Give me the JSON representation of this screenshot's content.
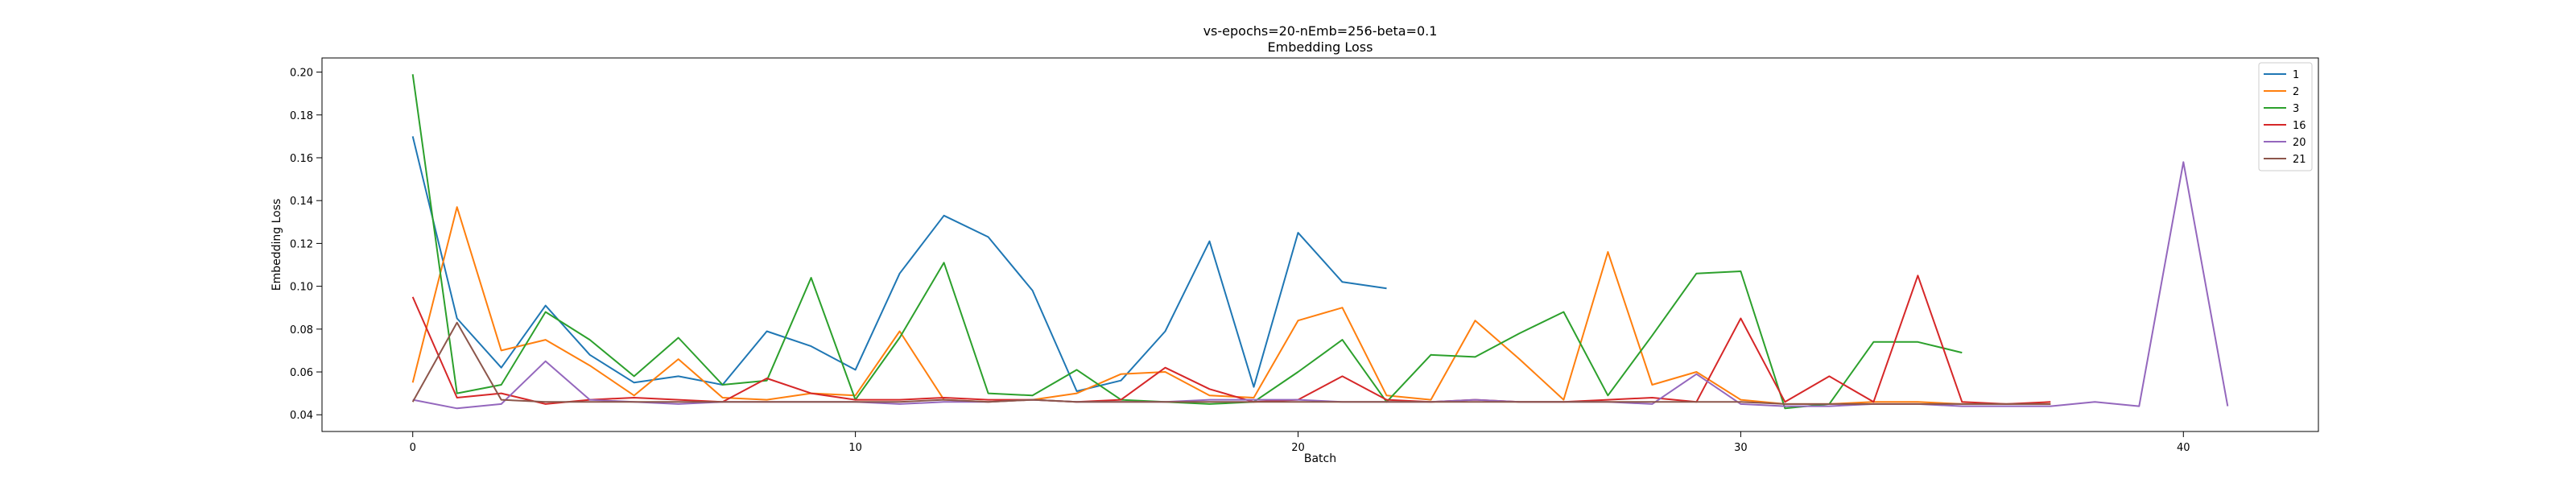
{
  "chart_data": {
    "type": "line",
    "title": "vs-epochs=20-nEmb=256-beta=0.1",
    "subtitle": "Embedding Loss",
    "xlabel": "Batch",
    "ylabel": "Embedding Loss",
    "xlim": [
      -2.05,
      43.05
    ],
    "ylim": [
      0.0322,
      0.2066
    ],
    "xticks": [
      0,
      10,
      20,
      30,
      40
    ],
    "yticks": [
      0.04,
      0.06,
      0.08,
      0.1,
      0.12,
      0.14,
      0.16,
      0.18,
      0.2
    ],
    "xtick_labels": [
      "0",
      "10",
      "20",
      "30",
      "40"
    ],
    "ytick_labels": [
      "0.04",
      "0.06",
      "0.08",
      "0.10",
      "0.12",
      "0.14",
      "0.16",
      "0.18",
      "0.20"
    ],
    "grid": false,
    "legend_position": "top-right",
    "series": [
      {
        "name": "1",
        "color": "#1f77b4",
        "x": [
          0,
          1,
          2,
          3,
          4,
          5,
          6,
          7,
          8,
          9,
          10,
          11,
          12,
          13,
          14,
          15,
          16,
          17,
          18,
          19,
          20,
          21,
          22
        ],
        "y": [
          0.17,
          0.085,
          0.062,
          0.091,
          0.068,
          0.055,
          0.058,
          0.054,
          0.079,
          0.072,
          0.061,
          0.106,
          0.133,
          0.123,
          0.098,
          0.051,
          0.056,
          0.079,
          0.121,
          0.053,
          0.125,
          0.102,
          0.099
        ]
      },
      {
        "name": "2",
        "color": "#ff7f0e",
        "x": [
          0,
          1,
          2,
          3,
          4,
          5,
          6,
          7,
          8,
          9,
          10,
          11,
          12,
          13,
          14,
          15,
          16,
          17,
          18,
          19,
          20,
          21,
          22,
          23,
          24,
          25,
          26,
          27,
          28,
          29,
          30,
          31,
          32,
          33,
          34,
          35,
          36,
          37
        ],
        "y": [
          0.055,
          0.137,
          0.07,
          0.075,
          0.063,
          0.049,
          0.066,
          0.048,
          0.047,
          0.05,
          0.049,
          0.079,
          0.047,
          0.046,
          0.047,
          0.05,
          0.059,
          0.06,
          0.049,
          0.048,
          0.084,
          0.09,
          0.049,
          0.047,
          0.084,
          0.066,
          0.047,
          0.116,
          0.054,
          0.06,
          0.047,
          0.045,
          0.045,
          0.046,
          0.046,
          0.045,
          0.045,
          0.045
        ]
      },
      {
        "name": "3",
        "color": "#2ca02c",
        "x": [
          0,
          1,
          2,
          3,
          4,
          5,
          6,
          7,
          8,
          9,
          10,
          11,
          12,
          13,
          14,
          15,
          16,
          17,
          18,
          19,
          20,
          21,
          22,
          23,
          24,
          25,
          26,
          27,
          28,
          29,
          30,
          31,
          32,
          33,
          34,
          35
        ],
        "y": [
          0.199,
          0.05,
          0.054,
          0.088,
          0.075,
          0.058,
          0.076,
          0.054,
          0.056,
          0.104,
          0.047,
          0.076,
          0.111,
          0.05,
          0.049,
          0.061,
          0.047,
          0.046,
          0.045,
          0.046,
          0.06,
          0.075,
          0.046,
          0.068,
          0.067,
          0.078,
          0.088,
          0.049,
          0.077,
          0.106,
          0.107,
          0.043,
          0.045,
          0.074,
          0.074,
          0.069
        ]
      },
      {
        "name": "16",
        "color": "#d62728",
        "x": [
          0,
          1,
          2,
          3,
          4,
          5,
          6,
          7,
          8,
          9,
          10,
          11,
          12,
          13,
          14,
          15,
          16,
          17,
          18,
          19,
          20,
          21,
          22,
          23,
          24,
          25,
          26,
          27,
          28,
          29,
          30,
          31,
          32,
          33,
          34,
          35,
          36,
          37
        ],
        "y": [
          0.095,
          0.048,
          0.05,
          0.045,
          0.047,
          0.048,
          0.047,
          0.046,
          0.057,
          0.05,
          0.047,
          0.047,
          0.048,
          0.047,
          0.047,
          0.046,
          0.047,
          0.062,
          0.052,
          0.046,
          0.047,
          0.058,
          0.047,
          0.046,
          0.047,
          0.046,
          0.046,
          0.047,
          0.048,
          0.046,
          0.085,
          0.046,
          0.058,
          0.046,
          0.105,
          0.046,
          0.045,
          0.046
        ]
      },
      {
        "name": "20",
        "color": "#9467bd",
        "x": [
          0,
          1,
          2,
          3,
          4,
          5,
          6,
          7,
          8,
          9,
          10,
          11,
          12,
          13,
          14,
          15,
          16,
          17,
          18,
          19,
          20,
          21,
          22,
          23,
          24,
          25,
          26,
          27,
          28,
          29,
          30,
          31,
          32,
          33,
          34,
          35,
          36,
          37,
          38,
          39,
          40,
          41
        ],
        "y": [
          0.047,
          0.043,
          0.045,
          0.065,
          0.047,
          0.046,
          0.045,
          0.046,
          0.046,
          0.046,
          0.046,
          0.045,
          0.046,
          0.046,
          0.047,
          0.046,
          0.046,
          0.046,
          0.047,
          0.047,
          0.047,
          0.046,
          0.046,
          0.046,
          0.047,
          0.046,
          0.046,
          0.046,
          0.045,
          0.059,
          0.045,
          0.044,
          0.044,
          0.045,
          0.045,
          0.044,
          0.044,
          0.044,
          0.046,
          0.044,
          0.158,
          0.044
        ]
      },
      {
        "name": "21",
        "color": "#8c564b",
        "x": [
          0,
          1,
          2,
          3,
          4,
          5,
          6,
          7,
          8,
          9,
          10,
          11,
          12,
          13,
          14,
          15,
          16,
          17,
          18,
          19,
          20,
          21,
          22,
          23,
          24,
          25,
          26,
          27,
          28,
          29,
          30,
          31,
          32,
          33,
          34,
          35,
          36,
          37
        ],
        "y": [
          0.046,
          0.083,
          0.047,
          0.046,
          0.046,
          0.046,
          0.046,
          0.046,
          0.046,
          0.046,
          0.046,
          0.046,
          0.047,
          0.046,
          0.047,
          0.046,
          0.046,
          0.046,
          0.046,
          0.046,
          0.046,
          0.046,
          0.046,
          0.046,
          0.046,
          0.046,
          0.046,
          0.046,
          0.046,
          0.046,
          0.046,
          0.045,
          0.045,
          0.045,
          0.045,
          0.045,
          0.045,
          0.045
        ]
      }
    ]
  }
}
